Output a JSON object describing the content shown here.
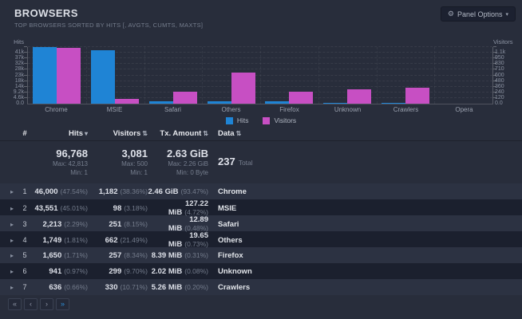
{
  "header": {
    "title": "BROWSERS",
    "subtitle": "TOP BROWSERS SORTED BY HITS [, AVGTS, CUMTS, MAXTS]"
  },
  "panel_options": {
    "label": "Panel Options"
  },
  "colors": {
    "hits": "#1f84d5",
    "visitors": "#c74fc3"
  },
  "chart_data": {
    "type": "bar",
    "categories": [
      "Chrome",
      "MSIE",
      "Safari",
      "Others",
      "Firefox",
      "Unknown",
      "Crawlers",
      "Opera"
    ],
    "series": [
      {
        "name": "Hits",
        "axis": "left",
        "color": "#1f84d5",
        "values": [
          46000,
          43551,
          2213,
          1749,
          1650,
          941,
          636,
          0
        ]
      },
      {
        "name": "Visitors",
        "axis": "right",
        "color": "#c74fc3",
        "values": [
          1182,
          98,
          251,
          662,
          257,
          299,
          330,
          0
        ]
      }
    ],
    "left_axis": {
      "label": "Hits",
      "max": 46000,
      "ticks": [
        "0.0",
        "4.6k",
        "9.2k",
        "14k",
        "18k",
        "23k",
        "28k",
        "32k",
        "37k",
        "41k"
      ]
    },
    "right_axis": {
      "label": "Visitors",
      "max": 1200,
      "ticks": [
        "0.0",
        "120",
        "240",
        "360",
        "480",
        "600",
        "710",
        "830",
        "950",
        "1.1k"
      ]
    },
    "legend_position": "bottom-center",
    "grid": true
  },
  "table": {
    "headers": [
      {
        "label": "#",
        "glyph": "",
        "sortable": false
      },
      {
        "label": "Hits",
        "glyph": "▾",
        "sortable": true
      },
      {
        "label": "Visitors",
        "glyph": "⇅",
        "sortable": true
      },
      {
        "label": "Tx. Amount",
        "glyph": "⇅",
        "sortable": true
      },
      {
        "label": "Data",
        "glyph": "⇅",
        "sortable": true
      }
    ],
    "summary": {
      "hits": {
        "value": "96,768",
        "max": "Max: 42,813",
        "min": "Min: 1"
      },
      "visitors": {
        "value": "3,081",
        "max": "Max: 500",
        "min": "Min: 1"
      },
      "tx": {
        "value": "2.63 GiB",
        "max": "Max: 2.26 GiB",
        "min": "Min: 0 Byte"
      },
      "data": {
        "value": "237",
        "suffix": "Total"
      }
    },
    "rows": [
      {
        "rank": "1",
        "hits": "46,000",
        "hits_pct": "(47.54%)",
        "visitors": "1,182",
        "visitors_pct": "(38.36%)",
        "tx": "2.46 GiB",
        "tx_pct": "(93.47%)",
        "name": "Chrome"
      },
      {
        "rank": "2",
        "hits": "43,551",
        "hits_pct": "(45.01%)",
        "visitors": "98",
        "visitors_pct": "(3.18%)",
        "tx": "127.22 MiB",
        "tx_pct": "(4.72%)",
        "name": "MSIE"
      },
      {
        "rank": "3",
        "hits": "2,213",
        "hits_pct": "(2.29%)",
        "visitors": "251",
        "visitors_pct": "(8.15%)",
        "tx": "12.89 MiB",
        "tx_pct": "(0.48%)",
        "name": "Safari"
      },
      {
        "rank": "4",
        "hits": "1,749",
        "hits_pct": "(1.81%)",
        "visitors": "662",
        "visitors_pct": "(21.49%)",
        "tx": "19.65 MiB",
        "tx_pct": "(0.73%)",
        "name": "Others"
      },
      {
        "rank": "5",
        "hits": "1,650",
        "hits_pct": "(1.71%)",
        "visitors": "257",
        "visitors_pct": "(8.34%)",
        "tx": "8.39 MiB",
        "tx_pct": "(0.31%)",
        "name": "Firefox"
      },
      {
        "rank": "6",
        "hits": "941",
        "hits_pct": "(0.97%)",
        "visitors": "299",
        "visitors_pct": "(9.70%)",
        "tx": "2.02 MiB",
        "tx_pct": "(0.08%)",
        "name": "Unknown"
      },
      {
        "rank": "7",
        "hits": "636",
        "hits_pct": "(0.66%)",
        "visitors": "330",
        "visitors_pct": "(10.71%)",
        "tx": "5.26 MiB",
        "tx_pct": "(0.20%)",
        "name": "Crawlers"
      }
    ]
  },
  "pagination": {
    "buttons": [
      {
        "name": "first-page",
        "glyph": "«",
        "active": false
      },
      {
        "name": "prev-page",
        "glyph": "‹",
        "active": false
      },
      {
        "name": "next-page",
        "glyph": "›",
        "active": false
      },
      {
        "name": "last-page",
        "glyph": "»",
        "active": true
      }
    ]
  }
}
